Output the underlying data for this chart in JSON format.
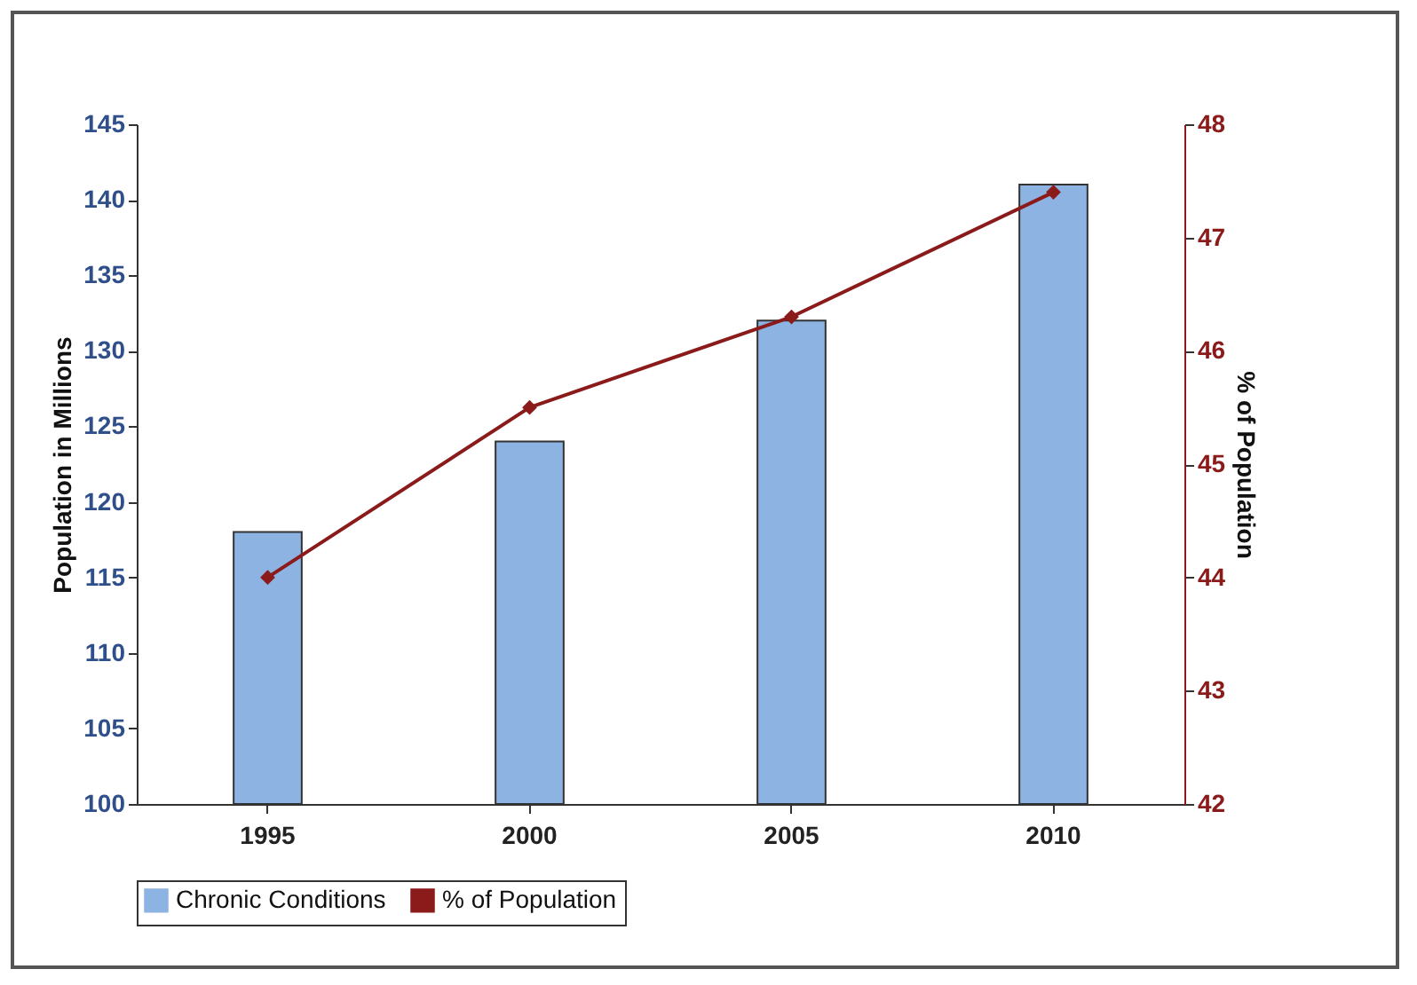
{
  "chart_data": {
    "type": "bar",
    "categories": [
      "1995",
      "2000",
      "2005",
      "2010"
    ],
    "ylabel": "Population in Millions",
    "y2label": "% of Population",
    "ylim": [
      100,
      145
    ],
    "yticks": [
      100,
      105,
      110,
      115,
      120,
      125,
      130,
      135,
      140,
      145
    ],
    "y2lim": [
      42,
      48
    ],
    "y2ticks": [
      42,
      43,
      44,
      45,
      46,
      47,
      48
    ],
    "grid": false,
    "legend": "bottom",
    "marker": "diamond",
    "series": [
      {
        "name": "Chronic Conditions",
        "color": "#8db3e2",
        "values": [
          118,
          124,
          132,
          141
        ]
      },
      {
        "name": "% of Population",
        "type": "line",
        "axis": "y2",
        "color": "#8b1a1a",
        "values": [
          44.0,
          45.5,
          46.3,
          47.4
        ]
      }
    ]
  }
}
